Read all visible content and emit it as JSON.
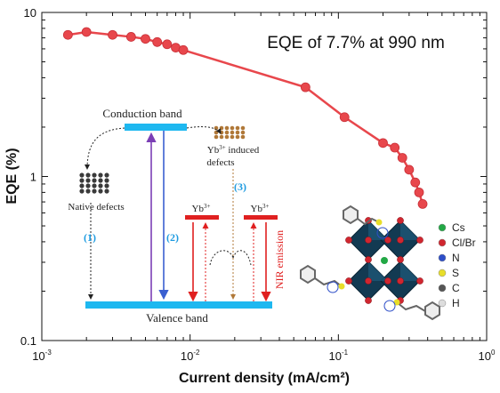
{
  "chart_data": {
    "type": "scatter",
    "title": "",
    "xlabel": "Current density (mA/cm²)",
    "ylabel": "EQE (%)",
    "xscale": "log",
    "yscale": "log",
    "xlim": [
      0.001,
      1
    ],
    "ylim": [
      0.1,
      10
    ],
    "x_ticks": [
      {
        "base": "10",
        "exp": "-3",
        "value": 0.001
      },
      {
        "base": "10",
        "exp": "-2",
        "value": 0.01
      },
      {
        "base": "10",
        "exp": "-1",
        "value": 0.1
      },
      {
        "base": "10",
        "exp": "0",
        "value": 1
      }
    ],
    "y_ticks": [
      {
        "label": "10",
        "value": 10
      },
      {
        "label": "1",
        "value": 1
      },
      {
        "label": "0.1",
        "value": 0.1
      }
    ],
    "series": [
      {
        "color": "#e8474c",
        "points": [
          {
            "x": 0.0015,
            "y": 7.3
          },
          {
            "x": 0.002,
            "y": 7.6
          },
          {
            "x": 0.003,
            "y": 7.3
          },
          {
            "x": 0.004,
            "y": 7.1
          },
          {
            "x": 0.005,
            "y": 6.9
          },
          {
            "x": 0.006,
            "y": 6.6
          },
          {
            "x": 0.007,
            "y": 6.4
          },
          {
            "x": 0.008,
            "y": 6.1
          },
          {
            "x": 0.009,
            "y": 5.9
          },
          {
            "x": 0.06,
            "y": 3.5
          },
          {
            "x": 0.11,
            "y": 2.3
          },
          {
            "x": 0.2,
            "y": 1.6
          },
          {
            "x": 0.24,
            "y": 1.5
          },
          {
            "x": 0.27,
            "y": 1.3
          },
          {
            "x": 0.3,
            "y": 1.1
          },
          {
            "x": 0.33,
            "y": 0.92
          },
          {
            "x": 0.35,
            "y": 0.8
          },
          {
            "x": 0.37,
            "y": 0.68
          }
        ]
      }
    ],
    "annotation": "EQE of 7.7% at 990 nm"
  },
  "inset": {
    "conduction_band": "Conduction band",
    "valence_band": "Valence band",
    "native_defects": "Native defects",
    "yb_defects_line1": "Yb",
    "yb_defects_sup": "3+",
    "yb_defects_line1_rest": " induced",
    "yb_defects_line2": "defects",
    "yb_label_base": "Yb",
    "yb_label_sup": "3+",
    "nir_emission": "NIR emission",
    "labels": [
      "(1)",
      "(2)",
      "(3)"
    ]
  },
  "legend": {
    "items": [
      {
        "label": "Cs",
        "color": "#22a845"
      },
      {
        "label": "Cl/Br",
        "color": "#d0262f"
      },
      {
        "label": "N",
        "color": "#2d4ec8"
      },
      {
        "label": "S",
        "color": "#e8de2a"
      },
      {
        "label": "C",
        "color": "#555555"
      },
      {
        "label": "H",
        "color": "#dddddd"
      }
    ]
  }
}
